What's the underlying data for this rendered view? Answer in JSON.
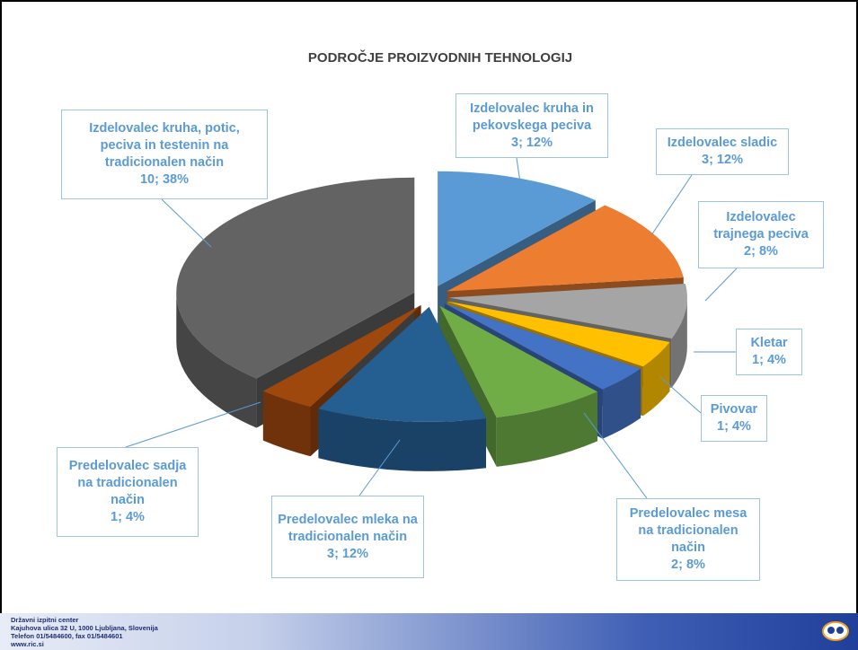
{
  "chart_data": {
    "type": "pie",
    "title": "PODROČJE PROIZVODNIH TEHNOLOGIJ",
    "categories": [
      "Izdelovalec kruha in pekovskega peciva",
      "Izdelovalec sladic",
      "Izdelovalec trajnega peciva",
      "Kletar",
      "Pivovar",
      "Predelovalec mesa na tradicionalen način",
      "Predelovalec mleka na tradicionalen način",
      "Predelovalec sadja na tradicionalen način",
      "Izdelovalec kruha, potic, peciva in testenin na tradicionalen način"
    ],
    "values": [
      3,
      3,
      2,
      1,
      1,
      2,
      3,
      1,
      10
    ],
    "value_labels": [
      "3; 12%",
      "3; 12%",
      "2; 8%",
      "1; 4%",
      "1; 4%",
      "2; 8%",
      "3; 12%",
      "1; 4%",
      "10; 38%"
    ],
    "colors": [
      "#5b9bd5",
      "#ed7d31",
      "#a5a5a5",
      "#ffc000",
      "#4472c4",
      "#70ad47",
      "#255e91",
      "#9e480e",
      "#636363"
    ]
  },
  "footer": {
    "lines": [
      "Državni izpitni center",
      "Kajuhova ulica 32 U, 1000 Ljubljana, Slovenija",
      "Telefon 01/5484600, fax 01/5484601",
      "www.ric.si"
    ]
  }
}
